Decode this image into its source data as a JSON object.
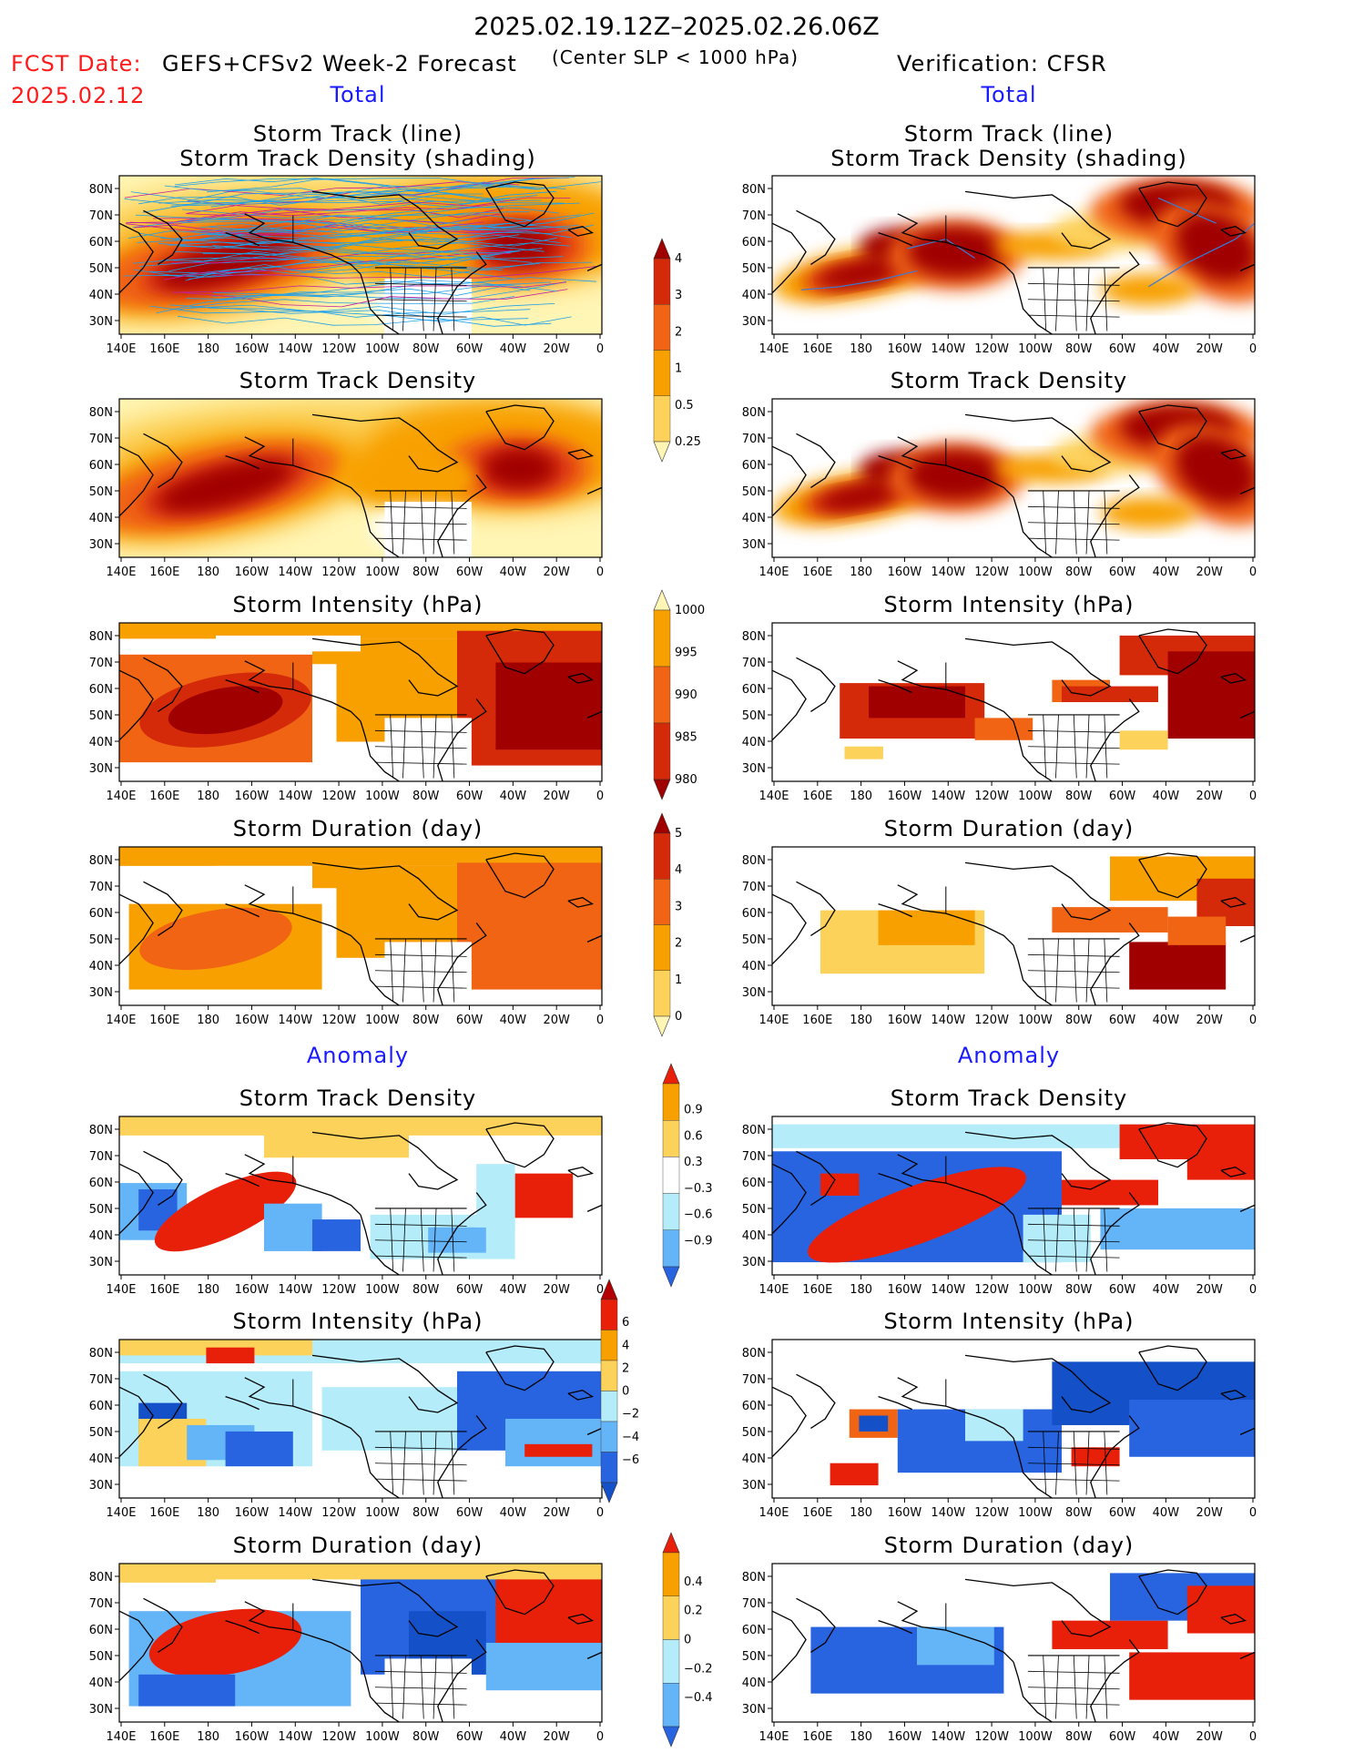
{
  "header": {
    "date_range": "2025.02.19.12Z–2025.02.26.06Z",
    "fcst_label": "FCST Date:",
    "fcst_date": "2025.02.12",
    "model": "GEFS+CFSv2 Week-2 Forecast",
    "criterion": "(Center SLP < 1000 hPa)",
    "verification": "Verification: CFSR"
  },
  "sections": {
    "total_label": "Total",
    "anomaly_label": "Anomaly"
  },
  "axes": {
    "x_ticks": [
      "140E",
      "160E",
      "180",
      "160W",
      "140W",
      "120W",
      "100W",
      "80W",
      "60W",
      "40W",
      "20W",
      "0"
    ],
    "y_ticks": [
      "80N",
      "70N",
      "60N",
      "50N",
      "40N",
      "30N"
    ],
    "lat_range": [
      25,
      85
    ],
    "lon_range": [
      "140E",
      "0"
    ]
  },
  "panels": [
    {
      "title1": "Storm Track (line)",
      "title2": "Storm Track Density (shading)"
    },
    {
      "title1": "Storm Track Density"
    },
    {
      "title1": "Storm Intensity (hPa)"
    },
    {
      "title1": "Storm Duration (day)"
    },
    {
      "title1": "Storm Track Density"
    },
    {
      "title1": "Storm Intensity (hPa)"
    },
    {
      "title1": "Storm Duration (day)"
    }
  ],
  "colorbars": [
    {
      "name": "total-density",
      "labels": [
        "4",
        "3",
        "2",
        "1",
        "0.5",
        "0.25"
      ],
      "colors": [
        "#a00000",
        "#d42a0a",
        "#f06414",
        "#f8a000",
        "#fcd25a",
        "#fff5b4"
      ]
    },
    {
      "name": "total-intensity",
      "labels": [
        "1000",
        "995",
        "990",
        "985",
        "980"
      ],
      "colors": [
        "#fff5b4",
        "#f8a000",
        "#f06414",
        "#d42a0a",
        "#a00000"
      ]
    },
    {
      "name": "total-duration",
      "labels": [
        "5",
        "4",
        "3",
        "2",
        "1",
        "0"
      ],
      "colors": [
        "#a00000",
        "#d42a0a",
        "#f06414",
        "#f8a000",
        "#fcd25a",
        "#fff5b4"
      ]
    },
    {
      "name": "anom-density",
      "labels": [
        "0.9",
        "0.6",
        "0.3",
        "−0.3",
        "−0.6",
        "−0.9"
      ],
      "colors": [
        "#e8200a",
        "#f8a000",
        "#fcd25a",
        "#ffffff",
        "#b4ecfa",
        "#64b4f8",
        "#2864e0"
      ]
    },
    {
      "name": "anom-intensity",
      "labels": [
        "6",
        "4",
        "2",
        "0",
        "−2",
        "−4",
        "−6"
      ],
      "colors": [
        "#b40000",
        "#e8200a",
        "#f8a000",
        "#fcd25a",
        "#b4ecfa",
        "#64b4f8",
        "#2864e0",
        "#1450c8"
      ]
    },
    {
      "name": "anom-duration",
      "labels": [
        "0.4",
        "0.2",
        "0",
        "−0.2",
        "−0.4"
      ],
      "colors": [
        "#e8200a",
        "#f8a000",
        "#fcd25a",
        "#b4ecfa",
        "#64b4f8",
        "#2864e0"
      ]
    }
  ],
  "chart_data": {
    "type": "heatmap",
    "title": "2025.02.19.12Z–2025.02.26.06Z",
    "columns": [
      "GEFS+CFSv2 Week-2 Forecast",
      "Verification: CFSR"
    ],
    "rows": [
      "Storm Track (line) / Storm Track Density (shading)",
      "Storm Track Density",
      "Storm Intensity (hPa)",
      "Storm Duration (day)",
      "Storm Track Density",
      "Storm Intensity (hPa)",
      "Storm Duration (day)"
    ],
    "grid": false,
    "legend": "center"
  }
}
